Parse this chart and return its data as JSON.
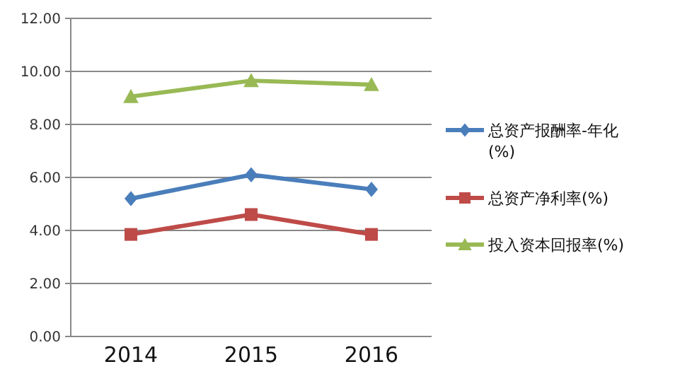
{
  "chart_data": {
    "type": "line",
    "categories": [
      "2014",
      "2015",
      "2016"
    ],
    "series": [
      {
        "name": "总资产报酬率-年化(%)",
        "color": "#4a7ebb",
        "values": [
          5.2,
          6.1,
          5.55
        ]
      },
      {
        "name": "总资产净利率(%)",
        "color": "#be4b48",
        "values": [
          3.85,
          4.6,
          3.85
        ],
        "marker": "square"
      },
      {
        "name": "投入资本回报率(%)",
        "color": "#98b954",
        "values": [
          9.05,
          9.65,
          9.5
        ],
        "marker": "triangle"
      }
    ],
    "marker": "diamond",
    "ylim": [
      0,
      12
    ],
    "yticks": [
      {
        "value": 0,
        "label": "0.00"
      },
      {
        "value": 2,
        "label": "2.00"
      },
      {
        "value": 4,
        "label": "4.00"
      },
      {
        "value": 6,
        "label": "6.00"
      },
      {
        "value": 8,
        "label": "8.00"
      },
      {
        "value": 10,
        "label": "10.00"
      },
      {
        "value": 12,
        "label": "12.00"
      }
    ],
    "grid": "y",
    "legend": "right"
  }
}
